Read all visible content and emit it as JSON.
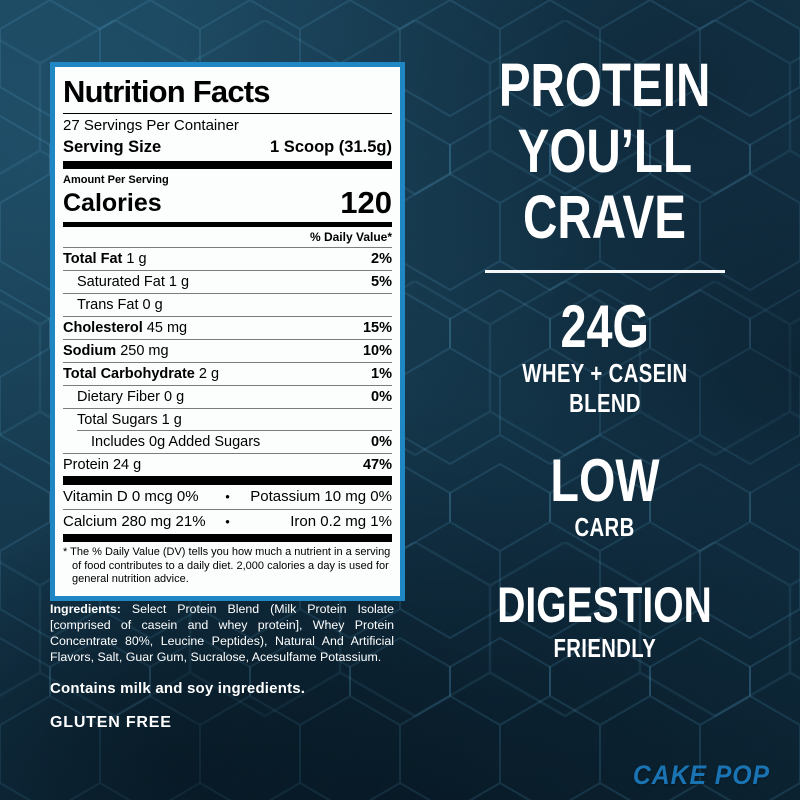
{
  "theme": {
    "background": "#163a4f",
    "label_border": "#1f87c3",
    "flavor_blue": "#1a73b2",
    "hex_line": "#5fb0d8"
  },
  "label": {
    "title": "Nutrition Facts",
    "servings_per_container": "27 Servings Per Container",
    "serving_size_label": "Serving Size",
    "serving_size_value": "1 Scoop (31.5g)",
    "amount_per_serving": "Amount Per Serving",
    "calories_label": "Calories",
    "calories_value": "120",
    "daily_value_header": "% Daily Value*",
    "rows": [
      {
        "name": "Total Fat",
        "amount": "1 g",
        "dv": "2%",
        "bold": true,
        "indent": 0
      },
      {
        "name": "Saturated Fat",
        "amount": "1 g",
        "dv": "5%",
        "bold": false,
        "indent": 1
      },
      {
        "name": "Trans Fat",
        "amount": "0 g",
        "dv": "",
        "bold": false,
        "indent": 1
      },
      {
        "name": "Cholesterol",
        "amount": "45 mg",
        "dv": "15%",
        "bold": true,
        "indent": 0
      },
      {
        "name": "Sodium",
        "amount": "250 mg",
        "dv": "10%",
        "bold": true,
        "indent": 0
      },
      {
        "name": "Total Carbohydrate",
        "amount": "2 g",
        "dv": "1%",
        "bold": true,
        "indent": 0
      },
      {
        "name": "Dietary Fiber",
        "amount": "0 g",
        "dv": "0%",
        "bold": false,
        "indent": 1
      },
      {
        "name": "Total Sugars",
        "amount": "1 g",
        "dv": "",
        "bold": false,
        "indent": 1
      },
      {
        "name": "Includes 0g Added Sugars",
        "amount": "",
        "dv": "0%",
        "bold": false,
        "indent": 2
      },
      {
        "name": "Protein",
        "amount": "24 g",
        "dv": "47%",
        "bold": false,
        "indent": 0
      }
    ],
    "micros": [
      {
        "left": "Vitamin D 0 mcg 0%",
        "bullet": "•",
        "right": "Potassium 10 mg 0%"
      },
      {
        "left": "Calcium 280 mg 21%",
        "bullet": "•",
        "right": "Iron 0.2 mg 1%"
      }
    ],
    "footnote": "* The % Daily Value (DV) tells you how much a nutrient in a serving of food contributes to a daily diet. 2,000 calories a day is used for general nutrition advice."
  },
  "info": {
    "ingredients_label": "Ingredients:",
    "ingredients_text": " Select Protein Blend (Milk Protein Isolate [comprised of casein and whey protein], Whey Protein Concentrate 80%, Leucine Peptides), Natural And Artificial Flavors, Salt, Guar Gum, Sucralose, Acesulfame Potassium.",
    "contains": "Contains milk and soy ingredients.",
    "gluten_free": "GLUTEN FREE"
  },
  "right": {
    "headline_lines": [
      "PROTEIN",
      "YOU’LL",
      "CRAVE"
    ],
    "benefits": [
      {
        "big": "24G",
        "small_lines": [
          "WHEY + CASEIN",
          "BLEND"
        ]
      },
      {
        "big": "LOW",
        "small_lines": [
          "CARB"
        ]
      },
      {
        "big": "DIGESTION",
        "small_lines": [
          "FRIENDLY"
        ]
      }
    ],
    "flavor": "CAKE POP"
  }
}
